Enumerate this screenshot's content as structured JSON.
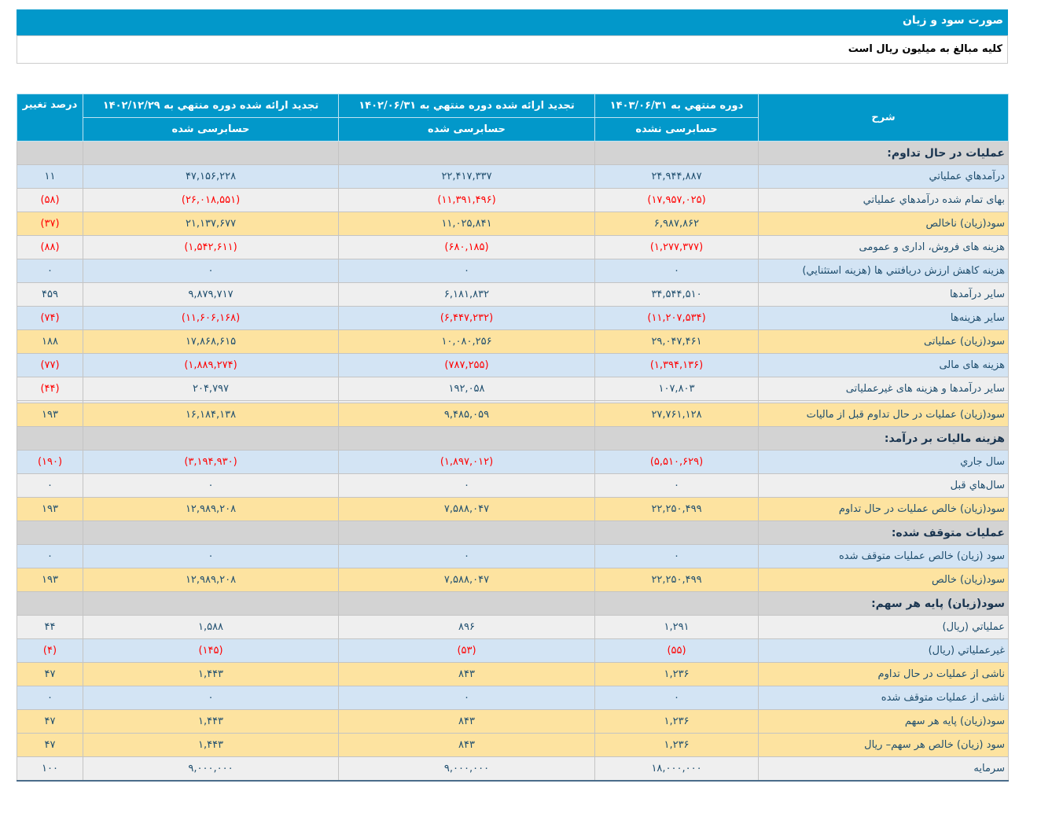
{
  "title": "صورت سود و زیان",
  "subtitle": "کلیه مبالغ به میلیون ریال است",
  "header": {
    "desc": "شرح",
    "col1": "دوره منتهي به ۱۴۰۳/۰۶/۳۱",
    "col1_sub": "حسابرسی نشده",
    "col2": "تجدید ارائه شده دوره منتهي به ۱۴۰۲/۰۶/۳۱",
    "col2_sub": "حسابرسی شده",
    "col3": "تجدید ارائه شده دوره منتهي به ۱۴۰۲/۱۲/۲۹",
    "col3_sub": "حسابرسی شده",
    "change": "درصد تغییر"
  },
  "rows": [
    {
      "type": "section",
      "label": "عملیات در حال تداوم:",
      "v": [
        "",
        "",
        "",
        ""
      ]
    },
    {
      "type": "blue",
      "label": "درآمدهاي عملياتي",
      "v": [
        "۲۴,۹۴۴,۸۸۷",
        "۲۲,۴۱۷,۳۳۷",
        "۴۷,۱۵۶,۲۲۸",
        "۱۱"
      ]
    },
    {
      "type": "gray",
      "label": "بهای تمام شده درآمدهاي عملياتي",
      "v": [
        "(۱۷,۹۵۷,۰۲۵)",
        "(۱۱,۳۹۱,۴۹۶)",
        "(۲۶,۰۱۸,۵۵۱)",
        "(۵۸)"
      ]
    },
    {
      "type": "yellow",
      "label": "سود(زيان) ناخالص",
      "v": [
        "۶,۹۸۷,۸۶۲",
        "۱۱,۰۲۵,۸۴۱",
        "۲۱,۱۳۷,۶۷۷",
        "(۳۷)"
      ]
    },
    {
      "type": "gray",
      "label": "هزینه های فروش، اداری و عمومی",
      "v": [
        "(۱,۲۷۷,۳۷۷)",
        "(۶۸۰,۱۸۵)",
        "(۱,۵۴۲,۶۱۱)",
        "(۸۸)"
      ]
    },
    {
      "type": "blue",
      "label": "هزینه کاهش ارزش دریافتني ها (هزينه استثنايي)",
      "v": [
        "۰",
        "۰",
        "۰",
        "۰"
      ]
    },
    {
      "type": "gray",
      "label": "سایر درآمدها",
      "v": [
        "۳۴,۵۴۴,۵۱۰",
        "۶,۱۸۱,۸۳۲",
        "۹,۸۷۹,۷۱۷",
        "۴۵۹"
      ]
    },
    {
      "type": "blue",
      "label": "سایر هزینه‌ها",
      "v": [
        "(۱۱,۲۰۷,۵۳۴)",
        "(۶,۴۴۷,۲۳۲)",
        "(۱۱,۶۰۶,۱۶۸)",
        "(۷۴)"
      ]
    },
    {
      "type": "yellow",
      "label": "سود(زيان) عملياتی",
      "v": [
        "۲۹,۰۴۷,۴۶۱",
        "۱۰,۰۸۰,۲۵۶",
        "۱۷,۸۶۸,۶۱۵",
        "۱۸۸"
      ]
    },
    {
      "type": "blue",
      "label": "هزینه های مالی",
      "v": [
        "(۱,۳۹۴,۱۳۶)",
        "(۷۸۷,۲۵۵)",
        "(۱,۸۸۹,۲۷۴)",
        "(۷۷)"
      ]
    },
    {
      "type": "gray",
      "label": "سایر درآمدها و هزینه های غیرعملیاتی",
      "v": [
        "۱۰۷,۸۰۳",
        "۱۹۲,۰۵۸",
        "۲۰۴,۷۹۷",
        "(۴۴)"
      ]
    },
    {
      "type": "spacer",
      "label": "",
      "v": [
        "",
        "",
        "",
        ""
      ]
    },
    {
      "type": "yellow",
      "label": "سود(زيان) عملیات در حال تداوم قبل از مالیات",
      "v": [
        "۲۷,۷۶۱,۱۲۸",
        "۹,۴۸۵,۰۵۹",
        "۱۶,۱۸۴,۱۳۸",
        "۱۹۳"
      ]
    },
    {
      "type": "section",
      "label": "هزینه مالیات بر درآمد:",
      "v": [
        "",
        "",
        "",
        ""
      ]
    },
    {
      "type": "blue",
      "label": "سال جاري",
      "v": [
        "(۵,۵۱۰,۶۲۹)",
        "(۱,۸۹۷,۰۱۲)",
        "(۳,۱۹۴,۹۳۰)",
        "(۱۹۰)"
      ]
    },
    {
      "type": "gray",
      "label": "سال‌هاي قبل",
      "v": [
        "۰",
        "۰",
        "۰",
        "۰"
      ]
    },
    {
      "type": "yellow",
      "label": "سود(زيان) خالص عمليات در حال تداوم",
      "v": [
        "۲۲,۲۵۰,۴۹۹",
        "۷,۵۸۸,۰۴۷",
        "۱۲,۹۸۹,۲۰۸",
        "۱۹۳"
      ]
    },
    {
      "type": "section",
      "label": "عملیات متوقف شده:",
      "v": [
        "",
        "",
        "",
        ""
      ]
    },
    {
      "type": "blue",
      "label": "سود (زيان) خالص عمليات متوقف شده",
      "v": [
        "۰",
        "۰",
        "۰",
        "۰"
      ]
    },
    {
      "type": "yellow",
      "label": "سود(زيان) خالص",
      "v": [
        "۲۲,۲۵۰,۴۹۹",
        "۷,۵۸۸,۰۴۷",
        "۱۲,۹۸۹,۲۰۸",
        "۱۹۳"
      ]
    },
    {
      "type": "section",
      "label": "سود(زيان) پایه هر سهم:",
      "v": [
        "",
        "",
        "",
        ""
      ]
    },
    {
      "type": "gray",
      "label": "عملیاتي (ريال)",
      "v": [
        "۱,۲۹۱",
        "۸۹۶",
        "۱,۵۸۸",
        "۴۴"
      ]
    },
    {
      "type": "blue",
      "label": "غیرعملیاتي (ريال)",
      "v": [
        "(۵۵)",
        "(۵۳)",
        "(۱۴۵)",
        "(۴)"
      ]
    },
    {
      "type": "yellow",
      "label": "ناشی از عملیات در حال تداوم",
      "v": [
        "۱,۲۳۶",
        "۸۴۳",
        "۱,۴۴۳",
        "۴۷"
      ]
    },
    {
      "type": "blue",
      "label": "ناشی از عملیات متوقف شده",
      "v": [
        "۰",
        "۰",
        "۰",
        "۰"
      ]
    },
    {
      "type": "yellow",
      "label": "سود(زيان) پایه هر سهم",
      "v": [
        "۱,۲۳۶",
        "۸۴۳",
        "۱,۴۴۳",
        "۴۷"
      ]
    },
    {
      "type": "yellow",
      "label": "سود (زيان) خالص هر سهم– ريال",
      "v": [
        "۱,۲۳۶",
        "۸۴۳",
        "۱,۴۴۳",
        "۴۷"
      ]
    },
    {
      "type": "gray",
      "label": "سرمایه",
      "v": [
        "۱۸,۰۰۰,۰۰۰",
        "۹,۰۰۰,۰۰۰",
        "۹,۰۰۰,۰۰۰",
        "۱۰۰"
      ]
    }
  ],
  "colors": {
    "header": "#0298ca",
    "negative": "#ff0000",
    "row_blue": "#d3e4f4",
    "row_gray": "#efefef",
    "row_yellow": "#fde3a0",
    "section": "#d3d3d3"
  }
}
